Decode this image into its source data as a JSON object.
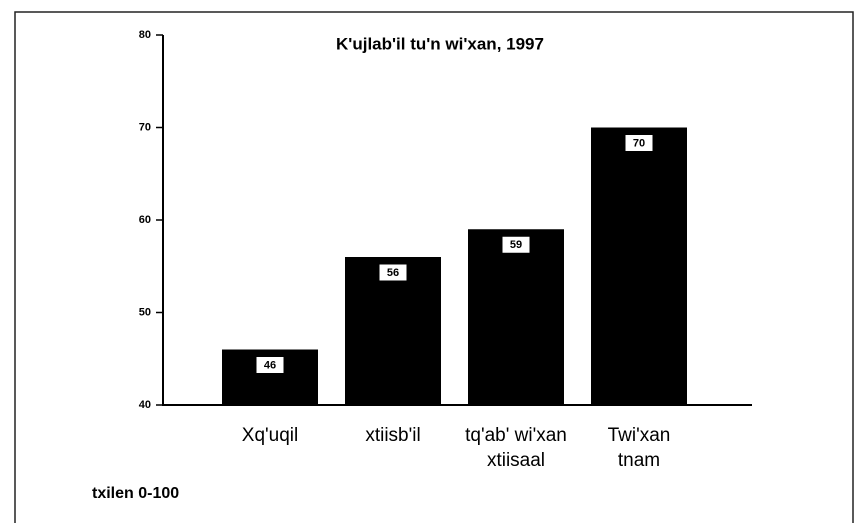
{
  "chart_data": {
    "type": "bar",
    "title": "K'ujlab'il tu'n wi'xan, 1997",
    "categories": [
      "Xq'uqil",
      "xtiisb'il",
      "tq'ab' wi'xan\nxtiisaal",
      "Twi'xan\ntnam"
    ],
    "values": [
      46,
      56,
      59,
      70
    ],
    "color": "#000000",
    "y_axis_label": "txilen 0-100",
    "ylim": [
      40,
      80
    ],
    "yticks": [
      40,
      50,
      60,
      70,
      80
    ]
  }
}
